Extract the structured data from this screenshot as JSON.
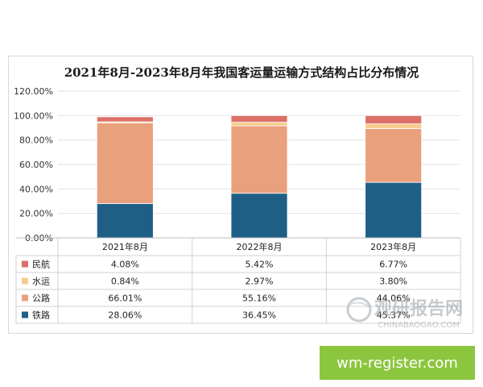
{
  "chart_data": {
    "type": "bar",
    "stacked": true,
    "title": "2021年8月-2023年8月年我国客运量运输方式结构占比分布情况",
    "categories": [
      "2021年8月",
      "2022年8月",
      "2023年8月"
    ],
    "series": [
      {
        "name": "铁路",
        "color": "#1f5f86",
        "values": [
          28.06,
          36.45,
          45.37
        ],
        "labels": [
          "28.06%",
          "36.45%",
          "45.37%"
        ]
      },
      {
        "name": "公路",
        "color": "#e9a07c",
        "values": [
          66.01,
          55.16,
          44.06
        ],
        "labels": [
          "66.01%",
          "55.16%",
          "44.06%"
        ]
      },
      {
        "name": "水运",
        "color": "#f6cd8e",
        "values": [
          0.84,
          2.97,
          3.8
        ],
        "labels": [
          "0.84%",
          "2.97%",
          "3.80%"
        ]
      },
      {
        "name": "民航",
        "color": "#dc7068",
        "values": [
          4.08,
          5.42,
          6.77
        ],
        "labels": [
          "4.08%",
          "5.42%",
          "6.77%"
        ]
      }
    ],
    "ylim": [
      0,
      120
    ],
    "yticks": [
      "0.00%",
      "20.00%",
      "40.00%",
      "60.00%",
      "80.00%",
      "100.00%",
      "120.00%"
    ],
    "table_order": [
      "民航",
      "水运",
      "公路",
      "铁路"
    ],
    "grid": true,
    "legend": "data-table"
  },
  "watermark": {
    "logo_text": "观研报告网",
    "logo_sub": "CHINABAOGAO.COM",
    "banner": "wm-register.com"
  }
}
